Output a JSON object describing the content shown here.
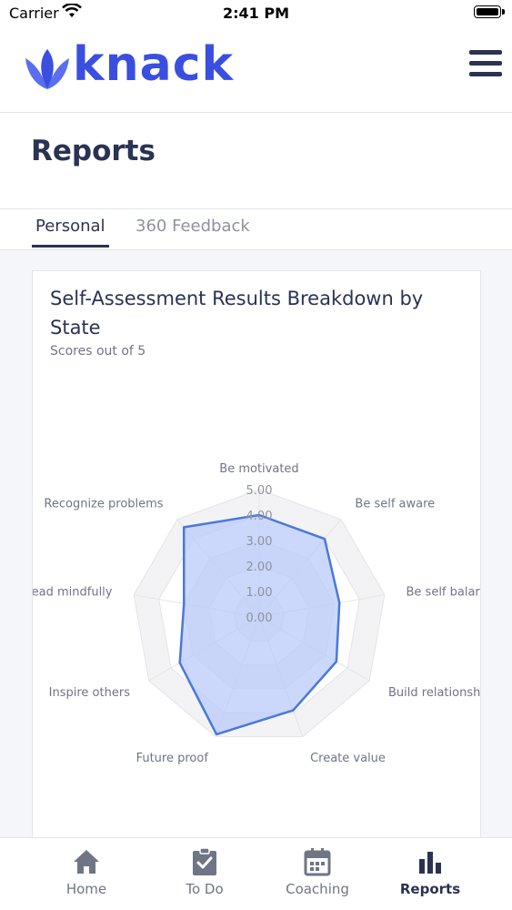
{
  "status_bar": {
    "carrier": "Carrier",
    "time": "2:41 PM"
  },
  "header": {
    "logo_text": "knack"
  },
  "page": {
    "title": "Reports"
  },
  "tabs": [
    {
      "label": "Personal",
      "active": true
    },
    {
      "label": "360 Feedback",
      "active": false
    }
  ],
  "card": {
    "title": "Self-Assessment Results Breakdown by State",
    "subtitle": "Scores out of 5"
  },
  "chart_data": {
    "type": "radar",
    "title": "Self-Assessment Results Breakdown by State",
    "subtitle": "Scores out of 5",
    "categories": [
      "Be motivated",
      "Be self aware",
      "Be self balar",
      "Build relationsh",
      "Create value",
      "Future proof",
      "Inspire others",
      "ead mindfully",
      "Recognize problems"
    ],
    "values": [
      4.0,
      4.0,
      3.2,
      3.5,
      3.9,
      4.9,
      3.6,
      3.0,
      4.6
    ],
    "rlim": [
      0,
      5
    ],
    "ticks": [
      "0.00",
      "1.00",
      "2.00",
      "3.00",
      "4.00",
      "5.00"
    ],
    "series_color": "#4a78dc",
    "fill_color": "#b9cbfa"
  },
  "bottom_nav": [
    {
      "label": "Home",
      "icon": "home-icon",
      "active": false
    },
    {
      "label": "To Do",
      "icon": "clipboard-check-icon",
      "active": false
    },
    {
      "label": "Coaching",
      "icon": "calendar-icon",
      "active": false
    },
    {
      "label": "Reports",
      "icon": "bar-chart-icon",
      "active": true
    }
  ],
  "colors": {
    "brand": "#3a4fe0",
    "text": "#2b3353",
    "muted": "#8d92a0"
  }
}
